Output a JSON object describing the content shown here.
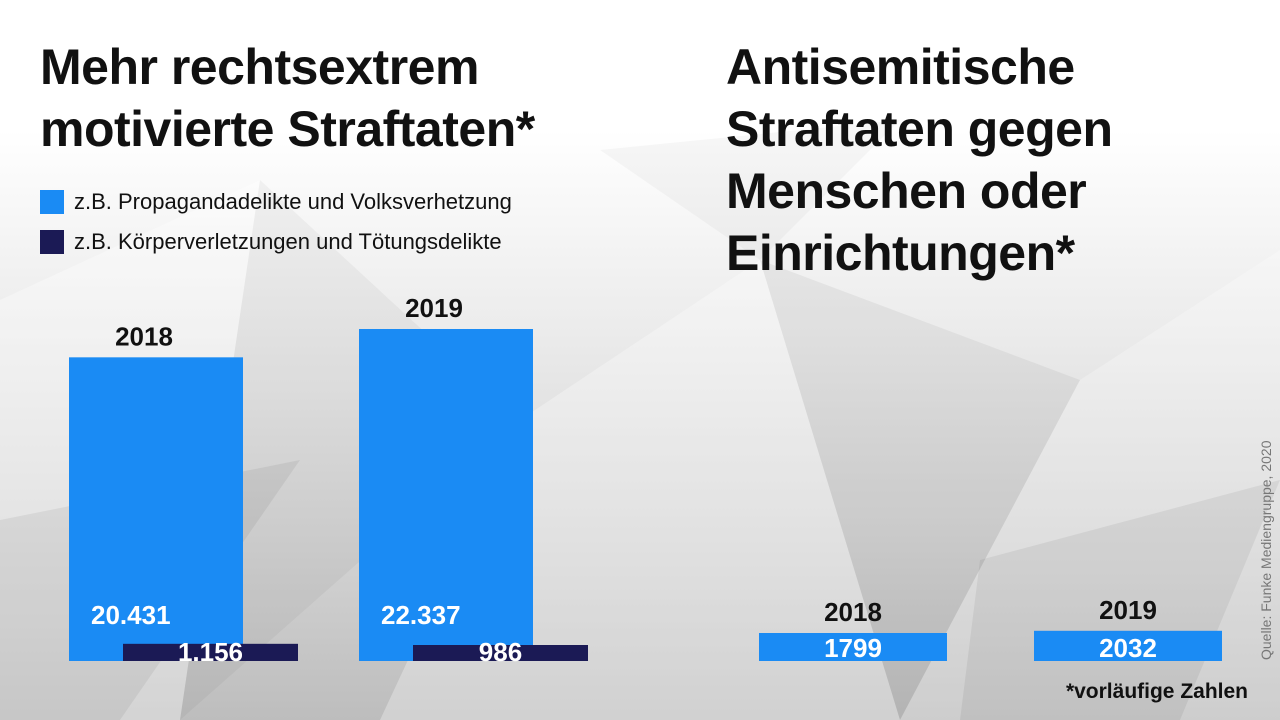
{
  "colors": {
    "propaganda": "#1a8bf4",
    "violence": "#1b1a55",
    "text": "#111111",
    "value_text": "#ffffff"
  },
  "chart_data": [
    {
      "type": "bar",
      "title": "Mehr rechtsextrem motivierte Straftaten*",
      "categories": [
        "2018",
        "2019"
      ],
      "series": [
        {
          "name": "z.B. Propagandadelikte und Volksverhetzung",
          "values": [
            20431,
            22337
          ],
          "value_labels": [
            "20.431",
            "22.337"
          ]
        },
        {
          "name": "z.B. Körperverletzungen und Tötungsdelikte",
          "values": [
            1156,
            986
          ],
          "value_labels": [
            "1.156",
            "986"
          ]
        }
      ],
      "legend": "top-left",
      "grid": false
    },
    {
      "type": "bar",
      "title": "Antisemitische Straftaten gegen Menschen oder Einrichtungen*",
      "categories": [
        "2018",
        "2019"
      ],
      "values": [
        1799,
        2032
      ],
      "value_labels": [
        "1799",
        "2032"
      ],
      "grid": false
    }
  ],
  "source": "Quelle: Funke Mediengruppe, 2020",
  "footnote": "*vorläufige Zahlen"
}
